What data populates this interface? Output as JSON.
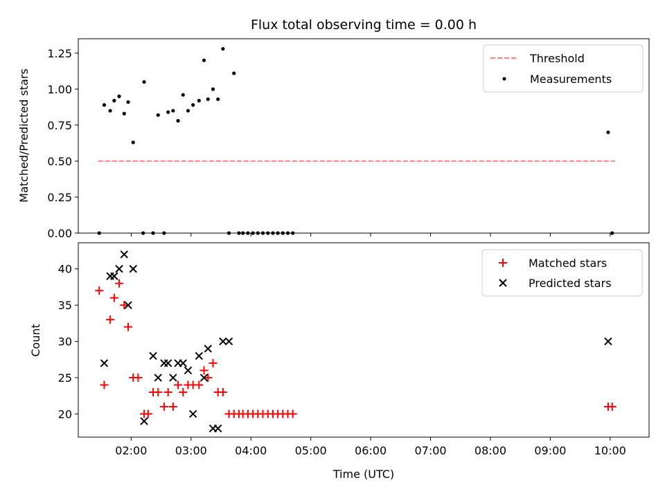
{
  "chart_data": [
    {
      "type": "scatter",
      "title": "Flux total observing time = 0.00 h",
      "xlabel": "",
      "ylabel": "Matched/Predicted stars",
      "xlim": [
        "01:07",
        "10:39"
      ],
      "ylim": [
        0,
        1.35
      ],
      "yticks": [
        0.0,
        0.25,
        0.5,
        0.75,
        1.0,
        1.25
      ],
      "ytick_labels": [
        "0.00",
        "0.25",
        "0.50",
        "0.75",
        "1.00",
        "1.25"
      ],
      "xticks": [
        "02:00",
        "03:00",
        "04:00",
        "05:00",
        "06:00",
        "07:00",
        "08:00",
        "09:00",
        "10:00"
      ],
      "show_xtick_labels": false,
      "grid": false,
      "legend_position": "upper right",
      "threshold": {
        "name": "Threshold",
        "value": 0.5,
        "x_start": "01:27",
        "x_end": "10:05",
        "color": "#ff7f7f",
        "style": "dashed"
      },
      "series": [
        {
          "name": "Measurements",
          "marker": "dot",
          "color": "#000000",
          "x": [
            "01:28",
            "01:33",
            "01:39",
            "01:43",
            "01:48",
            "01:53",
            "01:57",
            "02:02",
            "02:12",
            "02:13",
            "02:22",
            "02:27",
            "02:33",
            "02:37",
            "02:42",
            "02:47",
            "02:52",
            "02:57",
            "03:02",
            "03:08",
            "03:13",
            "03:17",
            "03:22",
            "03:27",
            "03:32",
            "03:38",
            "03:43",
            "03:48",
            "03:52",
            "03:57",
            "04:02",
            "04:07",
            "04:12",
            "04:17",
            "04:22",
            "04:27",
            "04:32",
            "04:37",
            "04:42",
            "09:58",
            "10:02"
          ],
          "y": [
            0.0,
            0.89,
            0.85,
            0.92,
            0.95,
            0.83,
            0.91,
            0.63,
            0.0,
            1.05,
            0.0,
            0.82,
            0.0,
            0.84,
            0.85,
            0.78,
            0.96,
            0.85,
            0.89,
            0.92,
            1.2,
            0.93,
            1.0,
            0.93,
            1.28,
            0.0,
            1.11,
            0.0,
            0.0,
            0.0,
            0.0,
            0.0,
            0.0,
            0.0,
            0.0,
            0.0,
            0.0,
            0.0,
            0.0,
            0.7,
            0.0
          ]
        }
      ]
    },
    {
      "type": "scatter",
      "title": "",
      "xlabel": "Time (UTC)",
      "ylabel": "Count",
      "xlim": [
        "01:07",
        "10:39"
      ],
      "ylim": [
        16.8,
        43.6
      ],
      "yticks": [
        20,
        25,
        30,
        35,
        40
      ],
      "ytick_labels": [
        "20",
        "25",
        "30",
        "35",
        "40"
      ],
      "xticks": [
        "02:00",
        "03:00",
        "04:00",
        "05:00",
        "06:00",
        "07:00",
        "08:00",
        "09:00",
        "10:00"
      ],
      "xtick_labels": [
        "02:00",
        "03:00",
        "04:00",
        "05:00",
        "06:00",
        "07:00",
        "08:00",
        "09:00",
        "10:00"
      ],
      "grid": false,
      "legend_position": "upper right",
      "series": [
        {
          "name": "Matched stars",
          "marker": "plus",
          "color": "#ff0000",
          "x": [
            "01:28",
            "01:33",
            "01:39",
            "01:43",
            "01:48",
            "01:53",
            "01:57",
            "02:02",
            "02:07",
            "02:13",
            "02:17",
            "02:22",
            "02:27",
            "02:33",
            "02:37",
            "02:42",
            "02:47",
            "02:52",
            "02:57",
            "03:02",
            "03:08",
            "03:13",
            "03:17",
            "03:22",
            "03:27",
            "03:32",
            "03:38",
            "03:43",
            "03:48",
            "03:52",
            "03:57",
            "04:02",
            "04:07",
            "04:12",
            "04:17",
            "04:22",
            "04:27",
            "04:32",
            "04:37",
            "04:42",
            "09:58",
            "10:02"
          ],
          "y": [
            37,
            24,
            33,
            36,
            38,
            35,
            32,
            25,
            25,
            20,
            20,
            23,
            23,
            21,
            23,
            21,
            24,
            23,
            24,
            24,
            24,
            26,
            25,
            27,
            23,
            23,
            20,
            20,
            20,
            20,
            20,
            20,
            20,
            20,
            20,
            20,
            20,
            20,
            20,
            20,
            21,
            21
          ]
        },
        {
          "name": "Predicted stars",
          "marker": "x",
          "color": "#000000",
          "x": [
            "01:33",
            "01:39",
            "01:43",
            "01:48",
            "01:53",
            "01:57",
            "02:02",
            "02:13",
            "02:22",
            "02:27",
            "02:33",
            "02:37",
            "02:42",
            "02:47",
            "02:52",
            "02:57",
            "03:02",
            "03:08",
            "03:13",
            "03:17",
            "03:22",
            "03:27",
            "03:32",
            "03:38",
            "09:58"
          ],
          "y": [
            27,
            39,
            39,
            40,
            42,
            35,
            40,
            19,
            28,
            25,
            27,
            27,
            25,
            27,
            27,
            26,
            20,
            28,
            25,
            29,
            18,
            18,
            30,
            30,
            30
          ]
        }
      ]
    }
  ]
}
